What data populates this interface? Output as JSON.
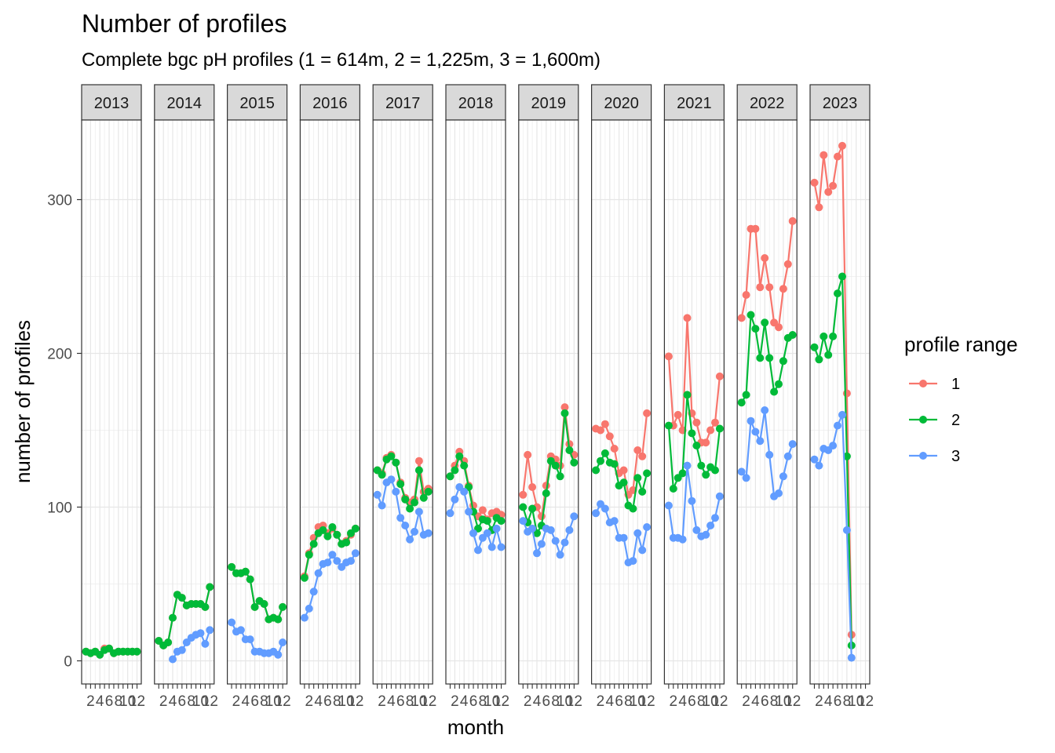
{
  "chart_data": {
    "type": "line",
    "title": "Number of profiles",
    "subtitle": "Complete bgc pH profiles (1 = 614m, 2 = 1,225m, 3 = 1,600m)",
    "xlabel": "month",
    "ylabel": "number of profiles",
    "x_tick_values": [
      2,
      4,
      6,
      8,
      10,
      12
    ],
    "y_tick_values": [
      0,
      100,
      200,
      300
    ],
    "ylim": [
      -15,
      350
    ],
    "xlim": [
      0.5,
      12.5
    ],
    "grid": true,
    "legend_placement": "right",
    "legend_title": "profile range",
    "facets": [
      "2013",
      "2014",
      "2015",
      "2016",
      "2017",
      "2018",
      "2019",
      "2020",
      "2021",
      "2022",
      "2023"
    ],
    "series": [
      {
        "name": "1",
        "color": "#F8766D",
        "data": {
          "2013": [
            6,
            5,
            6,
            4,
            8,
            8,
            5,
            6,
            6,
            6,
            6,
            6
          ],
          "2014": [
            13,
            10,
            12,
            28,
            43,
            41,
            36,
            37,
            37,
            37,
            35,
            48
          ],
          "2015": [
            61,
            57,
            57,
            58,
            53,
            35,
            39,
            37,
            27,
            28,
            27,
            35
          ],
          "2016": [
            55,
            70,
            80,
            87,
            88,
            83,
            86,
            82,
            76,
            78,
            82,
            86
          ],
          "2017": [
            124,
            122,
            132,
            134,
            129,
            116,
            106,
            103,
            105,
            130,
            110,
            112
          ],
          "2018": [
            120,
            127,
            136,
            130,
            114,
            101,
            94,
            98,
            92,
            96,
            97,
            95
          ],
          "2019": [
            108,
            134,
            113,
            100,
            94,
            114,
            133,
            131,
            127,
            165,
            141,
            134
          ],
          "2020": [
            151,
            150,
            154,
            146,
            138,
            122,
            124,
            108,
            111,
            137,
            133,
            161
          ],
          "2021": [
            198,
            153,
            160,
            150,
            223,
            161,
            155,
            142,
            142,
            150,
            155,
            185
          ],
          "2022": [
            223,
            238,
            281,
            281,
            243,
            262,
            243,
            220,
            217,
            242,
            258,
            286
          ],
          "2023": [
            311,
            295,
            329,
            305,
            309,
            328,
            335,
            174,
            17
          ]
        }
      },
      {
        "name": "2",
        "color": "#00BA38",
        "data": {
          "2013": [
            6,
            5,
            6,
            4,
            7,
            8,
            5,
            6,
            6,
            6,
            6,
            6
          ],
          "2014": [
            13,
            10,
            12,
            28,
            43,
            41,
            36,
            37,
            37,
            37,
            35,
            48
          ],
          "2015": [
            61,
            57,
            57,
            58,
            53,
            35,
            39,
            37,
            27,
            28,
            27,
            35
          ],
          "2016": [
            54,
            69,
            76,
            83,
            85,
            81,
            87,
            82,
            76,
            77,
            83,
            86
          ],
          "2017": [
            124,
            121,
            131,
            133,
            129,
            115,
            105,
            99,
            103,
            124,
            106,
            110
          ],
          "2018": [
            120,
            124,
            133,
            127,
            113,
            97,
            86,
            92,
            91,
            85,
            93,
            91
          ],
          "2019": [
            100,
            90,
            99,
            83,
            88,
            109,
            130,
            127,
            120,
            161,
            137,
            129
          ],
          "2020": [
            124,
            130,
            135,
            129,
            128,
            114,
            116,
            101,
            99,
            119,
            110,
            122
          ],
          "2021": [
            153,
            112,
            119,
            122,
            173,
            148,
            140,
            127,
            121,
            126,
            124,
            151
          ],
          "2022": [
            168,
            173,
            225,
            216,
            197,
            220,
            197,
            175,
            180,
            195,
            210,
            212
          ],
          "2023": [
            204,
            196,
            211,
            199,
            211,
            239,
            250,
            133,
            10
          ]
        }
      },
      {
        "name": "3",
        "color": "#619CFF",
        "data": {
          "2013": [],
          "2014": [
            null,
            null,
            null,
            1,
            6,
            7,
            12,
            15,
            17,
            18,
            11,
            20
          ],
          "2015": [
            25,
            19,
            20,
            14,
            14,
            6,
            6,
            5,
            5,
            6,
            4,
            12
          ],
          "2016": [
            28,
            34,
            45,
            57,
            63,
            64,
            69,
            65,
            61,
            64,
            65,
            70
          ],
          "2017": [
            108,
            101,
            116,
            118,
            110,
            93,
            88,
            79,
            84,
            97,
            82,
            83
          ],
          "2018": [
            96,
            105,
            113,
            110,
            97,
            83,
            72,
            80,
            83,
            74,
            86,
            74
          ],
          "2019": [
            91,
            84,
            86,
            70,
            76,
            86,
            85,
            78,
            69,
            77,
            85,
            94
          ],
          "2020": [
            96,
            102,
            99,
            90,
            91,
            80,
            80,
            64,
            65,
            83,
            72,
            87
          ],
          "2021": [
            101,
            80,
            80,
            79,
            127,
            104,
            85,
            81,
            82,
            88,
            93,
            107
          ],
          "2022": [
            123,
            119,
            156,
            149,
            143,
            163,
            134,
            107,
            109,
            120,
            133,
            141
          ],
          "2023": [
            131,
            127,
            138,
            137,
            140,
            153,
            160,
            85,
            2
          ]
        }
      }
    ]
  }
}
